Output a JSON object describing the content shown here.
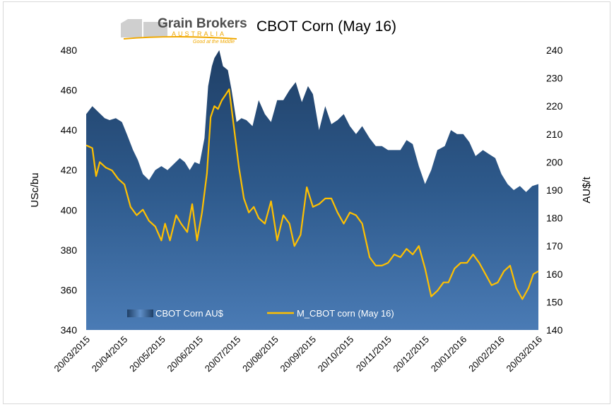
{
  "chart_data": {
    "type": "area",
    "title": "CBOT Corn (May 16)",
    "ylabel_left": "USc/bu",
    "ylabel_right": "AU$/t",
    "ylim_left": [
      340,
      480
    ],
    "ylim_right": [
      140,
      240
    ],
    "yticks_left": [
      "340",
      "360",
      "380",
      "400",
      "420",
      "440",
      "460",
      "480"
    ],
    "yticks_right": [
      "140",
      "150",
      "160",
      "170",
      "180",
      "190",
      "200",
      "210",
      "220",
      "230",
      "240"
    ],
    "xticks": [
      "20/03/2015",
      "20/04/2015",
      "20/05/2015",
      "20/06/2015",
      "20/07/2015",
      "20/08/2015",
      "20/09/2015",
      "20/10/2015",
      "20/11/2015",
      "20/12/2015",
      "20/01/2016",
      "20/02/2016",
      "20/03/2016"
    ],
    "grid": false,
    "legend_position": "bottom-inside",
    "series": [
      {
        "name": "CBOT Corn AU$",
        "kind": "area",
        "axis": "left",
        "color": "#2e5a8c",
        "x": [
          "2015-03-20",
          "2015-03-25",
          "2015-03-30",
          "2015-04-04",
          "2015-04-08",
          "2015-04-13",
          "2015-04-18",
          "2015-04-22",
          "2015-04-27",
          "2015-05-01",
          "2015-05-05",
          "2015-05-10",
          "2015-05-15",
          "2015-05-20",
          "2015-05-25",
          "2015-05-30",
          "2015-06-04",
          "2015-06-08",
          "2015-06-12",
          "2015-06-16",
          "2015-06-20",
          "2015-06-24",
          "2015-06-27",
          "2015-06-30",
          "2015-07-02",
          "2015-07-06",
          "2015-07-09",
          "2015-07-13",
          "2015-07-16",
          "2015-07-20",
          "2015-07-24",
          "2015-07-28",
          "2015-08-02",
          "2015-08-07",
          "2015-08-12",
          "2015-08-17",
          "2015-08-22",
          "2015-08-27",
          "2015-09-01",
          "2015-09-06",
          "2015-09-11",
          "2015-09-16",
          "2015-09-20",
          "2015-09-25",
          "2015-09-30",
          "2015-10-05",
          "2015-10-10",
          "2015-10-15",
          "2015-10-20",
          "2015-10-25",
          "2015-10-30",
          "2015-11-05",
          "2015-11-10",
          "2015-11-15",
          "2015-11-20",
          "2015-11-25",
          "2015-11-30",
          "2015-12-05",
          "2015-12-10",
          "2015-12-15",
          "2015-12-20",
          "2015-12-25",
          "2015-12-30",
          "2016-01-05",
          "2016-01-10",
          "2016-01-15",
          "2016-01-20",
          "2016-01-25",
          "2016-01-30",
          "2016-02-05",
          "2016-02-10",
          "2016-02-15",
          "2016-02-20",
          "2016-02-25",
          "2016-03-01",
          "2016-03-06",
          "2016-03-11",
          "2016-03-16",
          "2016-03-21"
        ],
        "values": [
          448,
          452,
          449,
          446,
          445,
          446,
          444,
          438,
          430,
          425,
          418,
          415,
          420,
          422,
          420,
          423,
          426,
          424,
          420,
          424,
          423,
          436,
          462,
          472,
          476,
          480,
          472,
          470,
          460,
          444,
          446,
          445,
          442,
          455,
          448,
          444,
          455,
          455,
          460,
          464,
          454,
          462,
          458,
          440,
          452,
          443,
          445,
          448,
          442,
          438,
          442,
          436,
          432,
          432,
          430,
          430,
          430,
          435,
          433,
          422,
          413,
          420,
          430,
          432,
          440,
          438,
          438,
          434,
          427,
          430,
          428,
          426,
          418,
          413,
          410,
          412,
          409,
          412,
          413
        ]
      },
      {
        "name": "M_CBOT corn (May 16)",
        "kind": "line",
        "axis": "right",
        "color": "#ffc000",
        "x": [
          "2015-03-20",
          "2015-03-25",
          "2015-03-28",
          "2015-03-31",
          "2015-04-05",
          "2015-04-10",
          "2015-04-15",
          "2015-04-20",
          "2015-04-25",
          "2015-04-30",
          "2015-05-05",
          "2015-05-10",
          "2015-05-15",
          "2015-05-20",
          "2015-05-23",
          "2015-05-27",
          "2015-06-01",
          "2015-06-05",
          "2015-06-10",
          "2015-06-14",
          "2015-06-18",
          "2015-06-22",
          "2015-06-26",
          "2015-06-29",
          "2015-07-02",
          "2015-07-05",
          "2015-07-08",
          "2015-07-11",
          "2015-07-14",
          "2015-07-18",
          "2015-07-22",
          "2015-07-26",
          "2015-07-30",
          "2015-08-03",
          "2015-08-07",
          "2015-08-12",
          "2015-08-17",
          "2015-08-22",
          "2015-08-27",
          "2015-09-01",
          "2015-09-05",
          "2015-09-10",
          "2015-09-15",
          "2015-09-20",
          "2015-09-25",
          "2015-09-30",
          "2015-10-05",
          "2015-10-10",
          "2015-10-15",
          "2015-10-20",
          "2015-10-25",
          "2015-10-30",
          "2015-11-05",
          "2015-11-10",
          "2015-11-15",
          "2015-11-20",
          "2015-11-25",
          "2015-11-30",
          "2015-12-05",
          "2015-12-10",
          "2015-12-15",
          "2015-12-20",
          "2015-12-25",
          "2015-12-30",
          "2016-01-04",
          "2016-01-08",
          "2016-01-13",
          "2016-01-18",
          "2016-01-23",
          "2016-01-28",
          "2016-02-02",
          "2016-02-07",
          "2016-02-12",
          "2016-02-17",
          "2016-02-22",
          "2016-02-27",
          "2016-03-03",
          "2016-03-08",
          "2016-03-13",
          "2016-03-17",
          "2016-03-21"
        ],
        "values": [
          206,
          205,
          195,
          200,
          198,
          197,
          194,
          192,
          184,
          181,
          183,
          179,
          177,
          172,
          178,
          172,
          181,
          178,
          175,
          185,
          172,
          182,
          196,
          216,
          220,
          219,
          222,
          224,
          226,
          212,
          198,
          187,
          182,
          184,
          180,
          178,
          186,
          172,
          181,
          178,
          170,
          174,
          191,
          184,
          185,
          187,
          187,
          182,
          178,
          182,
          181,
          178,
          166,
          163,
          163,
          164,
          167,
          166,
          169,
          167,
          170,
          162,
          152,
          154,
          157,
          157,
          162,
          164,
          164,
          167,
          164,
          160,
          156,
          157,
          161,
          163,
          155,
          151,
          155,
          160,
          161
        ]
      }
    ],
    "logo": {
      "main": "Grain Brokers",
      "sub": "AUSTRALIA",
      "tagline": "Good at the Middle"
    }
  }
}
